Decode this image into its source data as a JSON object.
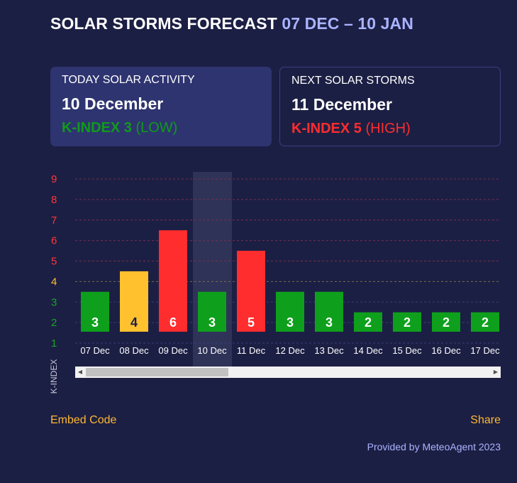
{
  "header": {
    "title": "SOLAR STORMS FORECAST",
    "range": "07 DEC – 10 JAN"
  },
  "today_card": {
    "label": "TODAY SOLAR ACTIVITY",
    "date": "10 December",
    "kp_text": "K-INDEX 3",
    "level_text": "(LOW)"
  },
  "next_card": {
    "label": "NEXT SOLAR STORMS",
    "date": "11 December",
    "kp_text": "K-INDEX 5",
    "level_text": "(HIGH)"
  },
  "chart_data": {
    "type": "bar",
    "categories": [
      "07 Dec",
      "08 Dec",
      "09 Dec",
      "10 Dec",
      "11 Dec",
      "12 Dec",
      "13 Dec",
      "14 Dec",
      "15 Dec",
      "16 Dec",
      "17 Dec"
    ],
    "values": [
      3,
      4,
      6,
      3,
      5,
      3,
      3,
      2,
      2,
      2,
      2
    ],
    "ylabel": "K-INDEX",
    "ylim": [
      1,
      9
    ],
    "yticks": [
      1,
      2,
      3,
      4,
      5,
      6,
      7,
      8,
      9
    ],
    "highlighted_category": "10 Dec",
    "colors": {
      "low": "#0ea01c",
      "moderate": "#ffc12e",
      "high": "#ff2d2d",
      "tick_low": "#1aa32a",
      "tick_moderate": "#ffc12e",
      "tick_high": "#ff3636",
      "grid_high": "#7a2e4a",
      "grid_moderate": "#7a6e4a",
      "grid_low": "#34407a"
    },
    "grid": true
  },
  "footer": {
    "embed_label": "Embed Code",
    "share_label": "Share",
    "provided": "Provided by MeteoAgent 2023"
  }
}
